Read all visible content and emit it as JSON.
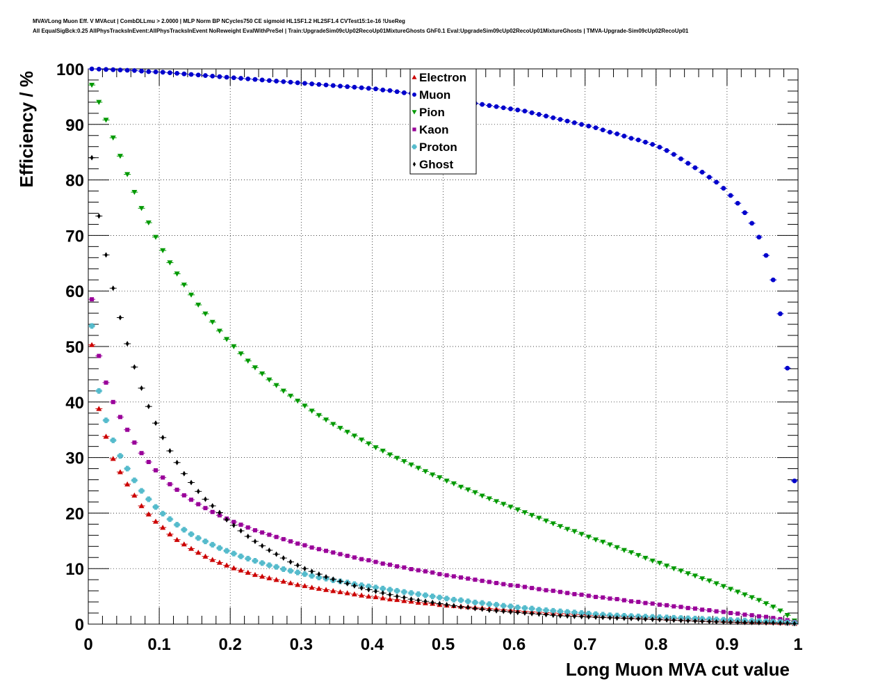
{
  "title_lines": [
    "MVAVLong Muon Eff. V MVAcut | CombDLLmu > 2.0000 | MLP Norm BP NCycles750 CE sigmoid HL1SF1.2 HL2SF1.4 CVTest15:1e-16 !UseReg",
    "All EqualSigBck:0.25 AllPhysTracksInEvent:AllPhysTracksInEvent NoReweight EvalWithPreSel | Train:UpgradeSim09cUp02RecoUp01MixtureGhosts GhF0.1 Eval:UpgradeSim09cUp02RecoUp01MixtureGhosts | TMVA-Upgrade-Sim09cUp02RecoUp01"
  ],
  "chart_data": {
    "type": "scatter",
    "title": "MVAVLong Muon Eff. V MVAcut",
    "xlabel": "Long Muon MVA cut value",
    "ylabel": "Efficiency / %",
    "xlim": [
      0,
      1
    ],
    "ylim": [
      0,
      100
    ],
    "grid": true,
    "legend_position": "top-center",
    "x_ticks": [
      "0",
      "0.1",
      "0.2",
      "0.3",
      "0.4",
      "0.5",
      "0.6",
      "0.7",
      "0.8",
      "0.9",
      "1"
    ],
    "y_ticks": [
      "0",
      "10",
      "20",
      "30",
      "40",
      "50",
      "60",
      "70",
      "80",
      "90",
      "100"
    ],
    "x": [
      0.005,
      0.015,
      0.025,
      0.035,
      0.045,
      0.055,
      0.065,
      0.075,
      0.085,
      0.095,
      0.105,
      0.115,
      0.125,
      0.135,
      0.145,
      0.155,
      0.165,
      0.175,
      0.185,
      0.195,
      0.205,
      0.215,
      0.225,
      0.235,
      0.245,
      0.255,
      0.265,
      0.275,
      0.285,
      0.295,
      0.305,
      0.315,
      0.325,
      0.335,
      0.345,
      0.355,
      0.365,
      0.375,
      0.385,
      0.395,
      0.405,
      0.415,
      0.425,
      0.435,
      0.445,
      0.455,
      0.465,
      0.475,
      0.485,
      0.495,
      0.505,
      0.515,
      0.525,
      0.535,
      0.545,
      0.555,
      0.565,
      0.575,
      0.585,
      0.595,
      0.605,
      0.615,
      0.625,
      0.635,
      0.645,
      0.655,
      0.665,
      0.675,
      0.685,
      0.695,
      0.705,
      0.715,
      0.725,
      0.735,
      0.745,
      0.755,
      0.765,
      0.775,
      0.785,
      0.795,
      0.805,
      0.815,
      0.825,
      0.835,
      0.845,
      0.855,
      0.865,
      0.875,
      0.885,
      0.895,
      0.905,
      0.915,
      0.925,
      0.935,
      0.945,
      0.955,
      0.965,
      0.975,
      0.985,
      0.995
    ],
    "series": [
      {
        "name": "Electron",
        "color": "#cc0000",
        "marker": "triangle-up",
        "values": [
          50.3,
          38.8,
          33.8,
          29.8,
          27.4,
          25.2,
          23.2,
          21.3,
          19.8,
          18.5,
          17.4,
          16.2,
          15.2,
          14.4,
          13.6,
          12.9,
          12.2,
          11.6,
          11.1,
          10.6,
          10.1,
          9.7,
          9.3,
          8.9,
          8.6,
          8.3,
          8.0,
          7.7,
          7.4,
          7.1,
          6.9,
          6.6,
          6.4,
          6.2,
          6.0,
          5.8,
          5.6,
          5.4,
          5.2,
          5.0,
          4.9,
          4.7,
          4.5,
          4.4,
          4.2,
          4.1,
          3.9,
          3.8,
          3.7,
          3.5,
          3.4,
          3.3,
          3.2,
          3.1,
          3.0,
          2.9,
          2.8,
          2.7,
          2.6,
          2.5,
          2.4,
          2.3,
          2.2,
          2.15,
          2.05,
          2.0,
          1.9,
          1.85,
          1.75,
          1.7,
          1.6,
          1.55,
          1.5,
          1.45,
          1.4,
          1.35,
          1.3,
          1.25,
          1.2,
          1.15,
          1.1,
          1.05,
          1.0,
          0.95,
          0.9,
          0.85,
          0.8,
          0.75,
          0.7,
          0.65,
          0.6,
          0.55,
          0.5,
          0.45,
          0.4,
          0.35,
          0.3,
          0.25,
          0.2,
          0.1
        ]
      },
      {
        "name": "Muon",
        "color": "#0000cc",
        "marker": "circle",
        "values": [
          100.0,
          99.95,
          99.9,
          99.85,
          99.8,
          99.75,
          99.7,
          99.6,
          99.5,
          99.45,
          99.4,
          99.3,
          99.2,
          99.1,
          99.0,
          98.9,
          98.8,
          98.7,
          98.6,
          98.5,
          98.4,
          98.3,
          98.2,
          98.1,
          98.0,
          97.9,
          97.8,
          97.7,
          97.6,
          97.5,
          97.4,
          97.3,
          97.2,
          97.1,
          97.0,
          96.9,
          96.8,
          96.7,
          96.6,
          96.5,
          96.4,
          96.2,
          96.1,
          95.9,
          95.7,
          95.6,
          95.4,
          95.2,
          95.0,
          94.8,
          94.6,
          94.4,
          94.2,
          94.0,
          93.8,
          93.6,
          93.4,
          93.2,
          93.0,
          92.8,
          92.6,
          92.4,
          92.1,
          91.8,
          91.5,
          91.2,
          90.9,
          90.6,
          90.3,
          90.0,
          89.7,
          89.4,
          89.0,
          88.6,
          88.3,
          87.9,
          87.5,
          87.2,
          86.8,
          86.4,
          85.9,
          85.3,
          84.6,
          83.8,
          83.0,
          82.2,
          81.4,
          80.5,
          79.6,
          78.5,
          77.2,
          75.8,
          74.1,
          72.2,
          69.7,
          66.4,
          62.0,
          55.9,
          46.1,
          25.8
        ]
      },
      {
        "name": "Pion",
        "color": "#009900",
        "marker": "triangle-down",
        "values": [
          97.1,
          94.0,
          90.8,
          87.6,
          84.3,
          81.0,
          77.8,
          74.9,
          72.3,
          69.7,
          67.3,
          65.1,
          63.1,
          61.1,
          59.3,
          57.5,
          55.9,
          54.4,
          52.8,
          51.3,
          50.0,
          48.7,
          47.4,
          46.2,
          45.1,
          44.0,
          43.0,
          42.0,
          41.1,
          40.2,
          39.3,
          38.4,
          37.6,
          36.8,
          36.0,
          35.3,
          34.6,
          33.9,
          33.2,
          32.5,
          31.8,
          31.2,
          30.5,
          29.9,
          29.3,
          28.7,
          28.1,
          27.5,
          26.9,
          26.4,
          25.8,
          25.3,
          24.7,
          24.2,
          23.7,
          23.1,
          22.6,
          22.1,
          21.6,
          21.1,
          20.6,
          20.1,
          19.6,
          19.1,
          18.6,
          18.1,
          17.6,
          17.1,
          16.7,
          16.2,
          15.7,
          15.2,
          14.8,
          14.3,
          13.8,
          13.3,
          12.9,
          12.4,
          11.9,
          11.4,
          11.0,
          10.5,
          10.0,
          9.6,
          9.1,
          8.7,
          8.2,
          7.8,
          7.3,
          6.8,
          6.3,
          5.8,
          5.3,
          4.8,
          4.3,
          3.7,
          3.1,
          2.4,
          1.6,
          0.6
        ]
      },
      {
        "name": "Kaon",
        "color": "#990099",
        "marker": "square",
        "values": [
          58.5,
          48.3,
          43.5,
          40.0,
          37.3,
          35.0,
          32.7,
          30.8,
          29.2,
          27.7,
          26.4,
          25.2,
          24.2,
          23.2,
          22.4,
          21.6,
          20.9,
          20.2,
          19.6,
          19.0,
          18.4,
          17.9,
          17.4,
          16.9,
          16.5,
          16.1,
          15.7,
          15.3,
          14.9,
          14.5,
          14.2,
          13.8,
          13.5,
          13.2,
          12.9,
          12.6,
          12.3,
          12.0,
          11.7,
          11.5,
          11.2,
          10.9,
          10.7,
          10.4,
          10.2,
          9.9,
          9.7,
          9.5,
          9.3,
          9.0,
          8.8,
          8.6,
          8.4,
          8.2,
          8.0,
          7.8,
          7.6,
          7.4,
          7.2,
          7.0,
          6.9,
          6.7,
          6.5,
          6.3,
          6.1,
          6.0,
          5.8,
          5.6,
          5.4,
          5.3,
          5.1,
          4.9,
          4.8,
          4.6,
          4.5,
          4.3,
          4.1,
          4.0,
          3.8,
          3.7,
          3.5,
          3.4,
          3.2,
          3.1,
          2.9,
          2.8,
          2.6,
          2.5,
          2.3,
          2.2,
          2.0,
          1.9,
          1.7,
          1.6,
          1.4,
          1.3,
          1.1,
          0.9,
          0.7,
          0.4
        ]
      },
      {
        "name": "Proton",
        "color": "#55bbcc",
        "marker": "cross",
        "values": [
          53.7,
          42.0,
          36.7,
          33.1,
          30.3,
          28.0,
          25.9,
          24.0,
          22.5,
          21.1,
          19.9,
          18.9,
          17.9,
          17.0,
          16.2,
          15.5,
          14.9,
          14.3,
          13.7,
          13.2,
          12.7,
          12.2,
          11.8,
          11.4,
          11.0,
          10.6,
          10.3,
          9.9,
          9.6,
          9.3,
          9.0,
          8.7,
          8.4,
          8.2,
          7.9,
          7.7,
          7.5,
          7.2,
          7.0,
          6.8,
          6.6,
          6.4,
          6.2,
          6.0,
          5.8,
          5.6,
          5.4,
          5.2,
          5.0,
          4.8,
          4.6,
          4.4,
          4.3,
          4.1,
          3.9,
          3.8,
          3.6,
          3.5,
          3.3,
          3.2,
          3.0,
          2.9,
          2.8,
          2.6,
          2.5,
          2.4,
          2.3,
          2.2,
          2.1,
          2.0,
          1.9,
          1.8,
          1.7,
          1.6,
          1.55,
          1.5,
          1.45,
          1.4,
          1.35,
          1.3,
          1.25,
          1.2,
          1.15,
          1.1,
          1.05,
          1.0,
          0.95,
          0.9,
          0.85,
          0.8,
          0.75,
          0.7,
          0.65,
          0.6,
          0.55,
          0.5,
          0.45,
          0.4,
          0.3,
          0.2
        ]
      },
      {
        "name": "Ghost",
        "color": "#000000",
        "marker": "diamond",
        "values": [
          84.0,
          73.5,
          66.5,
          60.5,
          55.2,
          50.5,
          46.3,
          42.5,
          39.2,
          36.2,
          33.6,
          31.2,
          29.1,
          27.1,
          25.5,
          23.9,
          22.5,
          21.3,
          20.1,
          18.8,
          17.8,
          16.8,
          15.8,
          14.9,
          14.1,
          13.3,
          12.6,
          11.9,
          11.2,
          10.6,
          10.0,
          9.5,
          9.0,
          8.5,
          8.1,
          7.7,
          7.3,
          6.9,
          6.5,
          6.2,
          5.9,
          5.6,
          5.3,
          5.0,
          4.8,
          4.5,
          4.3,
          4.1,
          3.9,
          3.7,
          3.5,
          3.3,
          3.1,
          3.0,
          2.8,
          2.7,
          2.5,
          2.4,
          2.3,
          2.2,
          2.1,
          2.0,
          1.9,
          1.8,
          1.7,
          1.6,
          1.5,
          1.45,
          1.4,
          1.35,
          1.3,
          1.25,
          1.2,
          1.15,
          1.1,
          1.05,
          1.0,
          0.95,
          0.9,
          0.85,
          0.8,
          0.75,
          0.7,
          0.65,
          0.6,
          0.55,
          0.5,
          0.45,
          0.4,
          0.38,
          0.35,
          0.32,
          0.3,
          0.28,
          0.25,
          0.22,
          0.2,
          0.17,
          0.15,
          0.1
        ]
      }
    ]
  }
}
